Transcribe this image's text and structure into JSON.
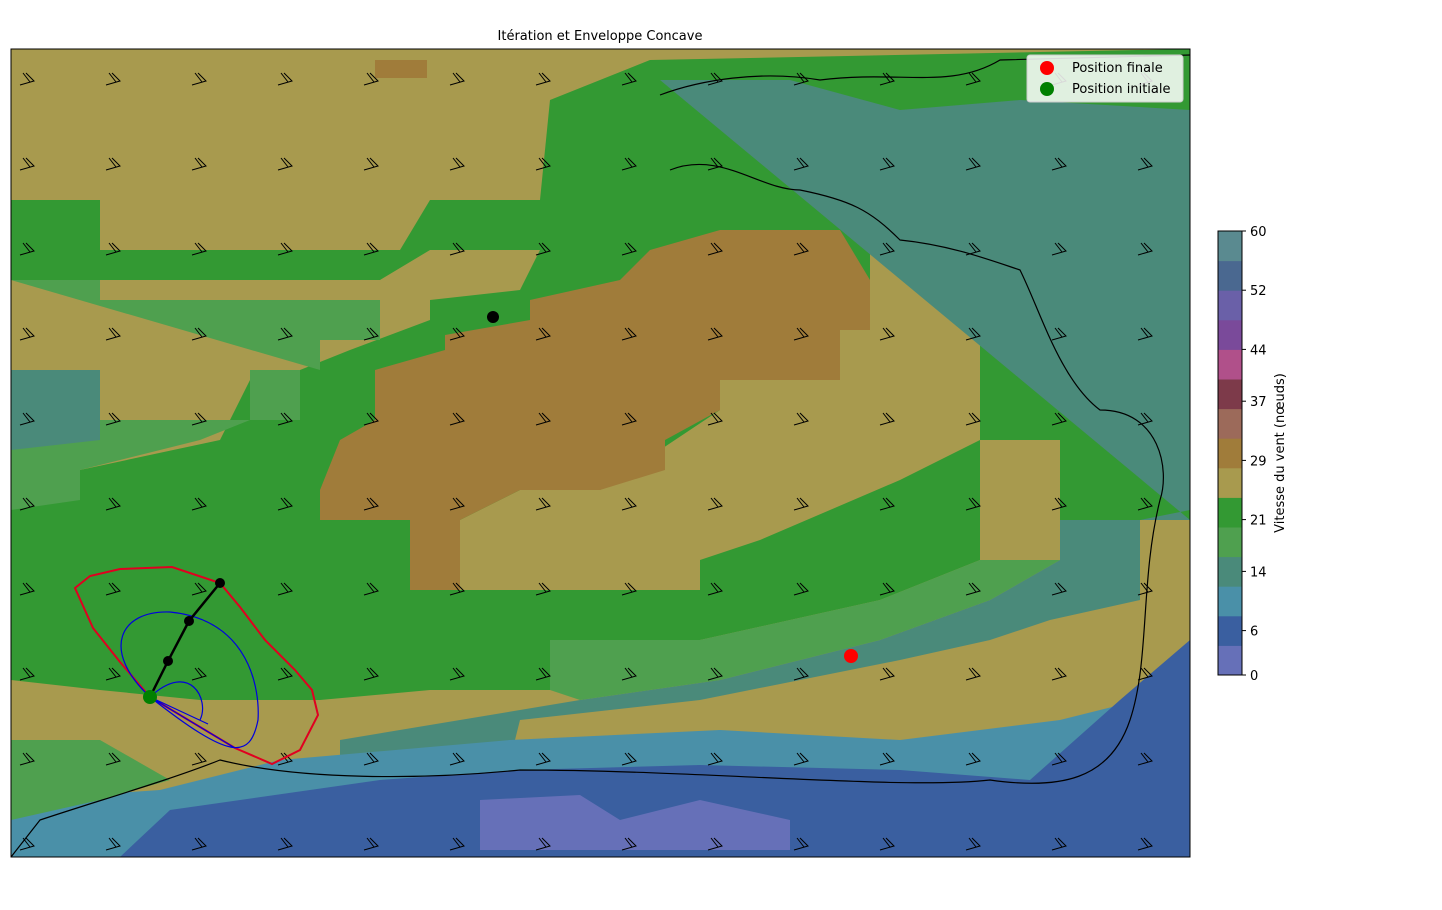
{
  "title": "Itération et Enveloppe Concave",
  "legend": [
    {
      "label": "Position finale",
      "color": "#ff0000"
    },
    {
      "label": "Position initiale",
      "color": "#008000"
    }
  ],
  "colorbar": {
    "label": "Vitesse du vent (nœuds)",
    "lim": [
      0,
      60
    ],
    "ticks": [
      0,
      6,
      14,
      21,
      29,
      37,
      44,
      52,
      60
    ],
    "colors": [
      "#6670b8",
      "#3a5fa0",
      "#4a90a8",
      "#4a8a7a",
      "#4fa04f",
      "#339933",
      "#a89a4e",
      "#a07c3a",
      "#9c6a5a",
      "#7d3a4a",
      "#b0508a",
      "#7a4a9a",
      "#6a60a8",
      "#4a6890",
      "#5a8a90"
    ]
  }
}
